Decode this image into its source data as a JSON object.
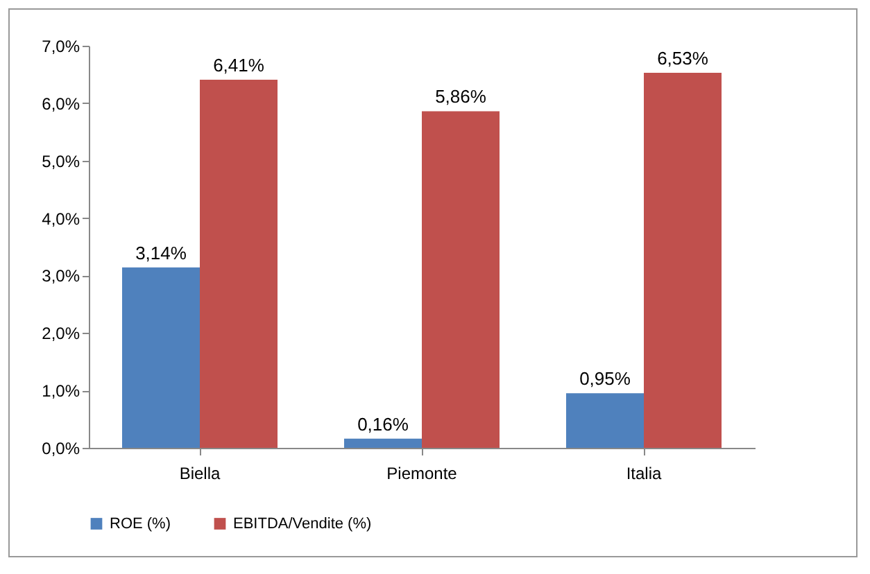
{
  "chart_data": {
    "type": "bar",
    "categories": [
      "Biella",
      "Piemonte",
      "Italia"
    ],
    "series": [
      {
        "name": "ROE (%)",
        "color": "#4f81bd",
        "values": [
          3.14,
          0.16,
          0.95
        ],
        "value_labels": [
          "3,14%",
          "0,16%",
          "0,95%"
        ]
      },
      {
        "name": "EBITDA/Vendite (%)",
        "color": "#c0504d",
        "values": [
          6.41,
          5.86,
          6.53
        ],
        "value_labels": [
          "6,41%",
          "5,86%",
          "6,53%"
        ]
      }
    ],
    "ylim": [
      0,
      7
    ],
    "yticks": [
      {
        "value": 0,
        "label": "0,0%"
      },
      {
        "value": 1,
        "label": "1,0%"
      },
      {
        "value": 2,
        "label": "2,0%"
      },
      {
        "value": 3,
        "label": "3,0%"
      },
      {
        "value": 4,
        "label": "4,0%"
      },
      {
        "value": 5,
        "label": "5,0%"
      },
      {
        "value": 6,
        "label": "6,0%"
      },
      {
        "value": 7,
        "label": "7,0%"
      }
    ],
    "grid": false,
    "legend": "bottom"
  }
}
